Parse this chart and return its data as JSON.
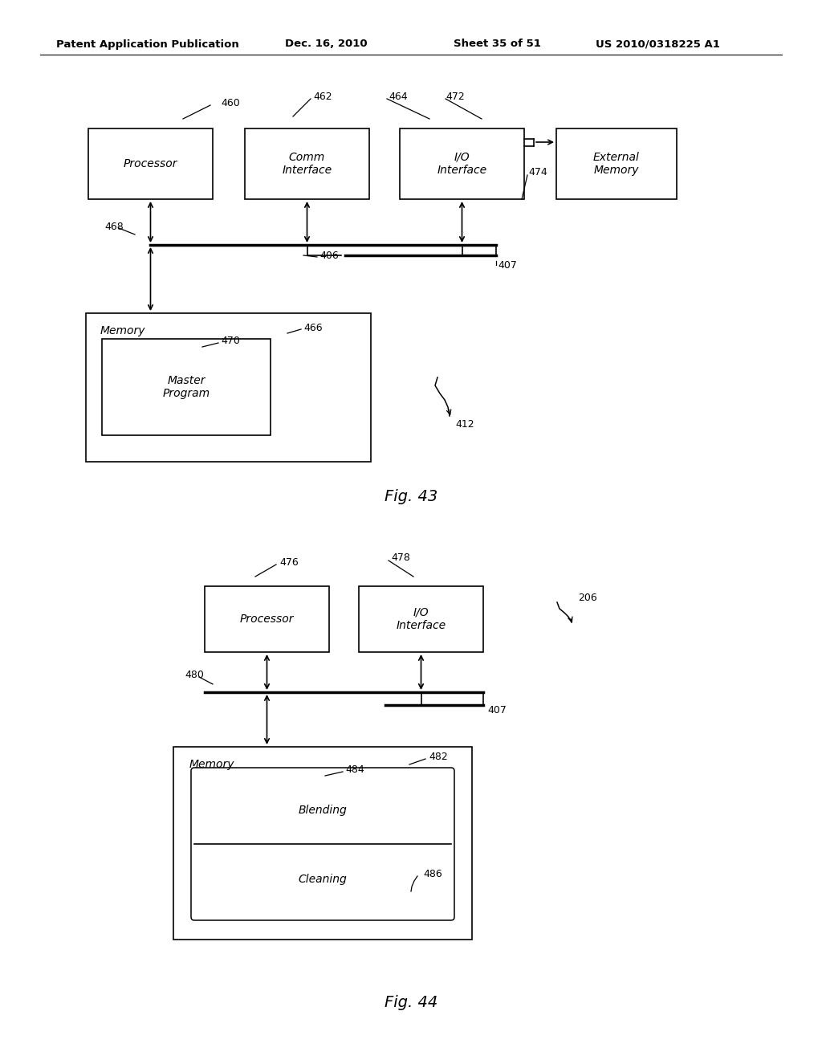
{
  "bg_color": "#ffffff",
  "header_text": "Patent Application Publication",
  "header_date": "Dec. 16, 2010",
  "header_sheet": "Sheet 35 of 51",
  "header_patent": "US 2010/0318225 A1",
  "fig43_label": "Fig. 43",
  "fig44_label": "Fig. 44"
}
